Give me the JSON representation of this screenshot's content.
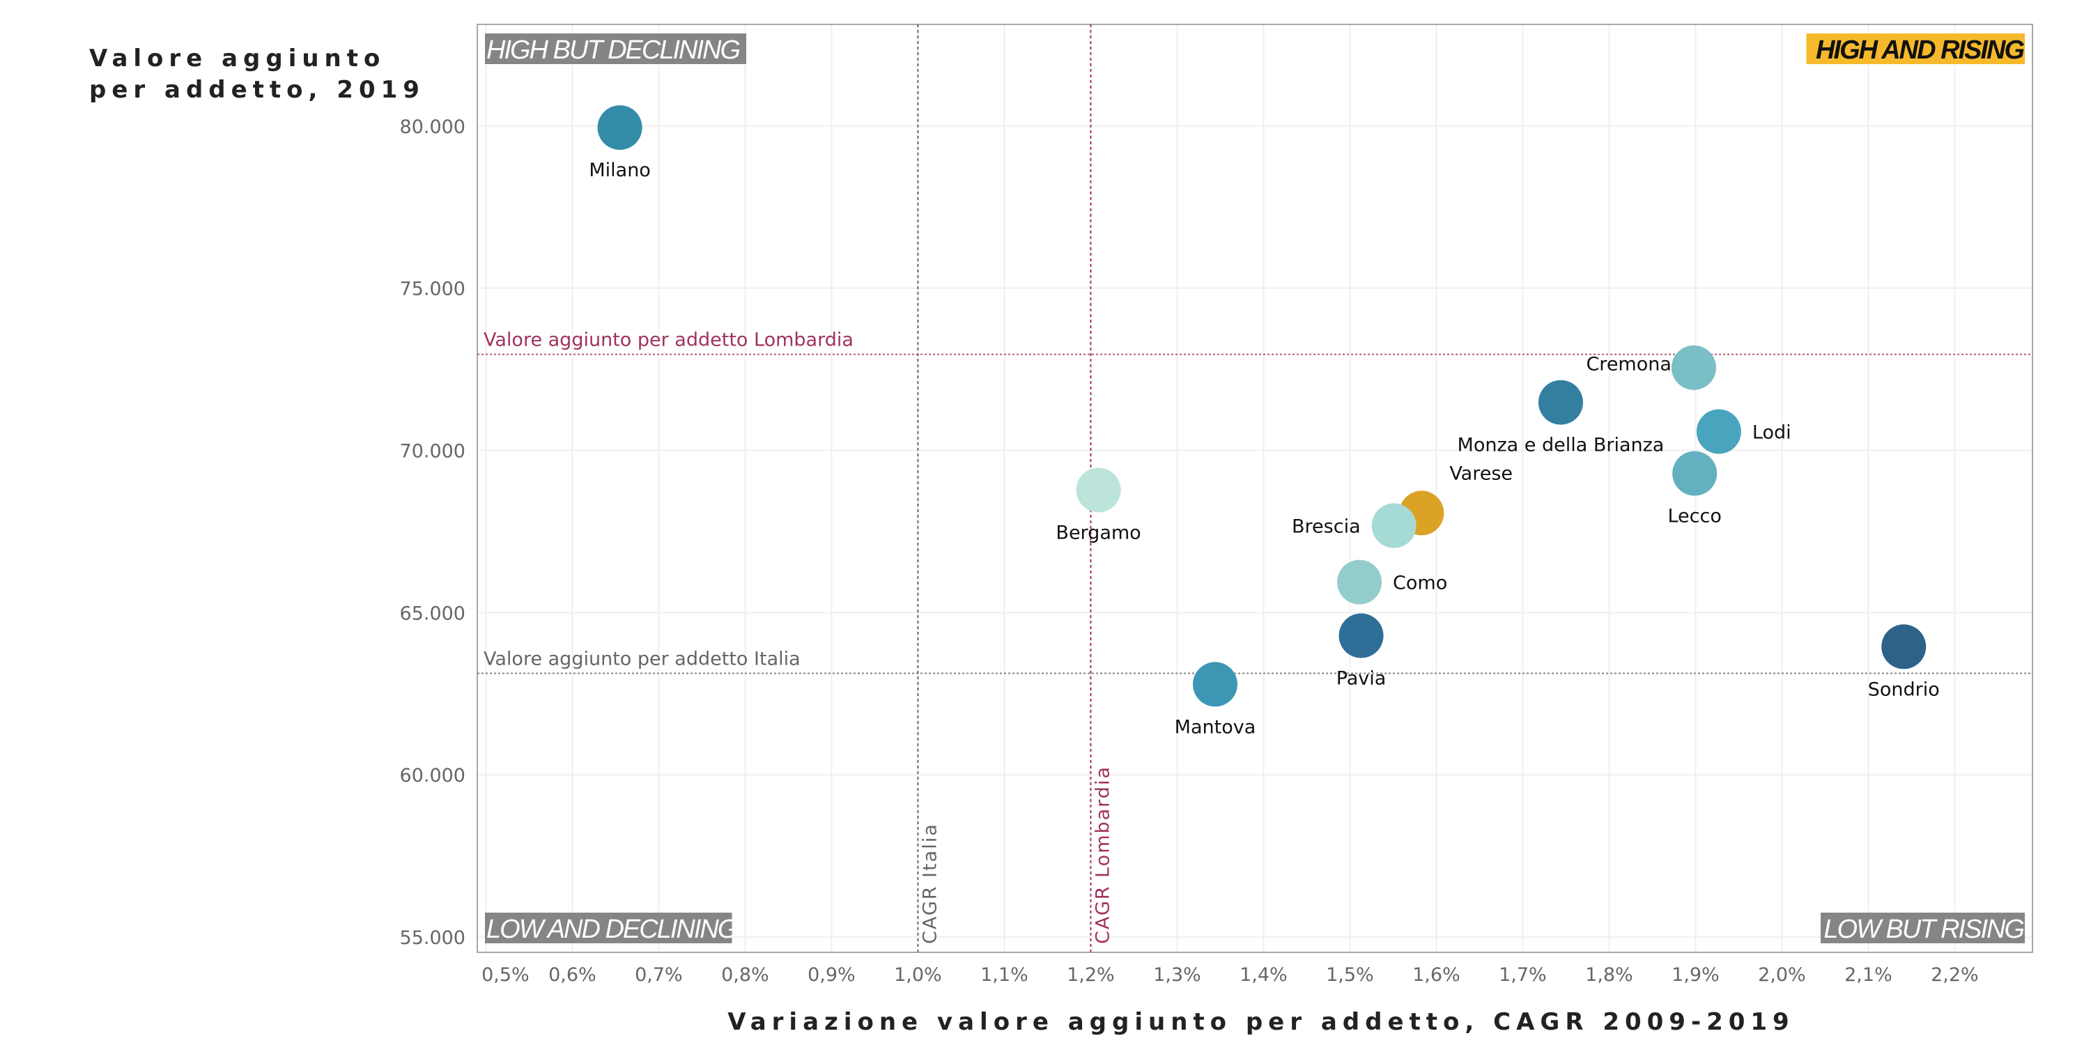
{
  "chart_data": {
    "type": "scatter",
    "title": "",
    "ylabel_lines": [
      "Valore aggiunto",
      "per addetto, 2019"
    ],
    "xlabel": "Variazione valore aggiunto per addetto, CAGR 2009-2019",
    "xlim": [
      0.49,
      2.29
    ],
    "ylim": [
      54530,
      83130
    ],
    "grid": true,
    "x_ticks": [
      0.5,
      0.6,
      0.7,
      0.8,
      0.9,
      1.0,
      1.1,
      1.2,
      1.3,
      1.4,
      1.5,
      1.6,
      1.7,
      1.8,
      1.9,
      2.0,
      2.1,
      2.2
    ],
    "x_tick_labels": [
      "0,5%",
      "0,6%",
      "0,7%",
      "0,8%",
      "0,9%",
      "1,0%",
      "1,1%",
      "1,2%",
      "1,3%",
      "1,4%",
      "1,5%",
      "1,6%",
      "1,7%",
      "1,8%",
      "1,9%",
      "2,0%",
      "2,1%",
      "2,2%"
    ],
    "y_ticks": [
      55000,
      60000,
      65000,
      70000,
      75000,
      80000
    ],
    "y_tick_labels": [
      "55.000",
      "60.000",
      "65.000",
      "70.000",
      "75.000",
      "80.000"
    ],
    "reference_lines": [
      {
        "orientation": "horizontal",
        "value": 72960,
        "label": "Valore aggiunto per addetto Lombardia",
        "color": "#a0325f"
      },
      {
        "orientation": "horizontal",
        "value": 63130,
        "label": "Valore aggiunto per addetto Italia",
        "color": "#666666"
      },
      {
        "orientation": "vertical",
        "value": 1.0,
        "label": "CAGR Italia",
        "color": "#666666"
      },
      {
        "orientation": "vertical",
        "value": 1.2,
        "label": "CAGR Lombardia",
        "color": "#a0325f"
      }
    ],
    "quadrant_labels": [
      {
        "text": "HIGH BUT DECLINING",
        "position": "top-left",
        "bg": "#858585",
        "color": "#ffffff"
      },
      {
        "text": "HIGH AND RISING",
        "position": "top-right",
        "bg": "#f6b92b",
        "color": "#111111"
      },
      {
        "text": "LOW AND DECLINING",
        "position": "bottom-left",
        "bg": "#858585",
        "color": "#ffffff"
      },
      {
        "text": "LOW BUT RISING",
        "position": "bottom-right",
        "bg": "#858585",
        "color": "#ffffff"
      }
    ],
    "points": [
      {
        "name": "Milano",
        "x": 0.655,
        "y": 79950,
        "color": "#338da9",
        "label_pos": "below"
      },
      {
        "name": "Bergamo",
        "x": 1.209,
        "y": 68780,
        "color": "#bce4da",
        "label_pos": "below"
      },
      {
        "name": "Mantova",
        "x": 1.344,
        "y": 62790,
        "color": "#3d97b4",
        "label_pos": "below"
      },
      {
        "name": "Pavia",
        "x": 1.513,
        "y": 64290,
        "color": "#2e6e97",
        "label_pos": "below"
      },
      {
        "name": "Como",
        "x": 1.511,
        "y": 65940,
        "color": "#92cdcc",
        "label_pos": "right"
      },
      {
        "name": "Varese",
        "x": 1.583,
        "y": 68070,
        "color": "#dba226",
        "label_pos": "upper-right"
      },
      {
        "name": "Brescia",
        "x": 1.551,
        "y": 67680,
        "color": "#a6dad4",
        "label_pos": "left"
      },
      {
        "name": "Monza e della Brianza",
        "x": 1.744,
        "y": 71480,
        "color": "#337fa0",
        "label_pos": "below"
      },
      {
        "name": "Cremona",
        "x": 1.898,
        "y": 72550,
        "color": "#7abfc6",
        "label_pos": "upper-left"
      },
      {
        "name": "Lodi",
        "x": 1.927,
        "y": 70580,
        "color": "#48a5bd",
        "label_pos": "right"
      },
      {
        "name": "Lecco",
        "x": 1.899,
        "y": 69290,
        "color": "#63b1be",
        "label_pos": "below"
      },
      {
        "name": "Sondrio",
        "x": 2.141,
        "y": 63950,
        "color": "#2d6289",
        "label_pos": "below"
      }
    ]
  }
}
